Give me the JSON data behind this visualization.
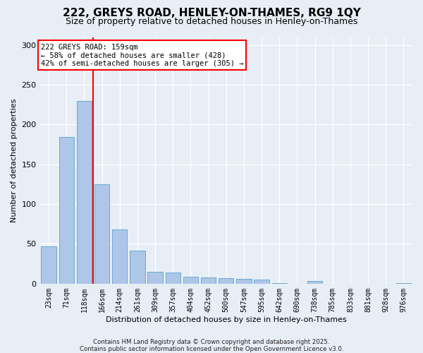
{
  "title1": "222, GREYS ROAD, HENLEY-ON-THAMES, RG9 1QY",
  "title2": "Size of property relative to detached houses in Henley-on-Thames",
  "xlabel": "Distribution of detached houses by size in Henley-on-Thames",
  "ylabel": "Number of detached properties",
  "categories": [
    "23sqm",
    "71sqm",
    "118sqm",
    "166sqm",
    "214sqm",
    "261sqm",
    "309sqm",
    "357sqm",
    "404sqm",
    "452sqm",
    "500sqm",
    "547sqm",
    "595sqm",
    "642sqm",
    "690sqm",
    "738sqm",
    "785sqm",
    "833sqm",
    "881sqm",
    "928sqm",
    "976sqm"
  ],
  "values": [
    47,
    184,
    230,
    125,
    68,
    42,
    15,
    14,
    9,
    8,
    7,
    6,
    5,
    1,
    0,
    3,
    0,
    0,
    0,
    0,
    1
  ],
  "bar_color": "#aec6e8",
  "bar_edge_color": "#6aaad4",
  "bg_color": "#e8eef6",
  "vline_color": "red",
  "vline_x": 2.5,
  "annotation_text": "222 GREYS ROAD: 159sqm\n← 58% of detached houses are smaller (428)\n42% of semi-detached houses are larger (305) →",
  "annotation_box_color": "white",
  "annotation_box_edge": "red",
  "footer": "Contains HM Land Registry data © Crown copyright and database right 2025.\nContains public sector information licensed under the Open Government Licence v3.0.",
  "ylim": [
    0,
    310
  ],
  "yticks": [
    0,
    50,
    100,
    150,
    200,
    250,
    300
  ],
  "figsize": [
    6.0,
    5.0
  ],
  "dpi": 100
}
